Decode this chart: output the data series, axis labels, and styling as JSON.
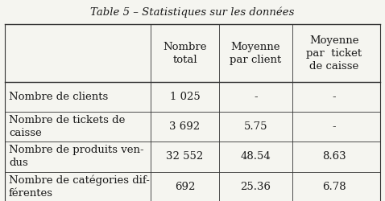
{
  "title": "Table 5 – Statistiques sur les données",
  "col_headers": [
    "Nombre\ntotal",
    "Moyenne\npar client",
    "Moyenne\npar  ticket\nde caisse"
  ],
  "row_labels": [
    "Nombre de clients",
    "Nombre de tickets de\ncaisse",
    "Nombre de produits ven-\ndus",
    "Nombre de catégories dif-\nférentes"
  ],
  "data": [
    [
      "1 025",
      "-",
      "-"
    ],
    [
      "3 692",
      "5.75",
      "-"
    ],
    [
      "32 552",
      "48.54",
      "8.63"
    ],
    [
      "692",
      "25.36",
      "6.78"
    ]
  ],
  "bg_color": "#f5f5f0",
  "text_color": "#1a1a1a",
  "font_size": 9.5,
  "title_font_size": 9.5
}
